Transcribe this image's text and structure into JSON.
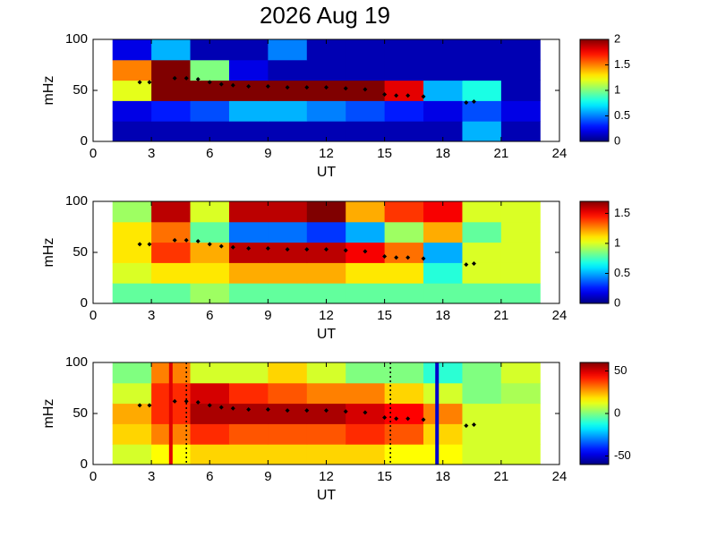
{
  "chart_data": [
    {
      "type": "heatmap",
      "title": "2026 Aug 19",
      "xlabel": "UT",
      "ylabel": "mHz",
      "xlim": [
        0,
        24
      ],
      "xticks": [
        0,
        3,
        6,
        9,
        12,
        15,
        18,
        21,
        24
      ],
      "ylim": [
        0,
        100
      ],
      "yticks": [
        0,
        50,
        100
      ],
      "xbins": [
        1,
        3,
        5,
        7,
        9,
        11,
        13,
        15,
        17,
        19,
        21,
        23
      ],
      "ybins": [
        0,
        20,
        40,
        60,
        80,
        100
      ],
      "clim": [
        0,
        2
      ],
      "cticks": [
        0,
        0.5,
        1,
        1.5,
        2
      ],
      "values": [
        [
          0.1,
          0.1,
          0.1,
          0.1,
          0.1,
          0.1,
          0.1,
          0.1,
          0.1,
          0.6,
          0.1
        ],
        [
          0.2,
          0.3,
          0.4,
          0.6,
          0.6,
          0.5,
          0.4,
          0.3,
          0.2,
          0.4,
          0.2
        ],
        [
          1.2,
          2,
          2,
          2,
          2,
          2,
          2,
          1.8,
          0.6,
          0.8,
          0.1
        ],
        [
          1.5,
          2,
          1,
          0.2,
          0.1,
          0.1,
          0.1,
          0.1,
          0.1,
          0.1,
          0.1
        ],
        [
          0.2,
          0.6,
          0.1,
          0.1,
          0.5,
          0.1,
          0.1,
          0.1,
          0.1,
          0.1,
          0.1
        ]
      ],
      "points": {
        "x": [
          2.4,
          2.9,
          4.2,
          4.8,
          5.4,
          6,
          6.6,
          7.2,
          8,
          9,
          10,
          11,
          12,
          13,
          14,
          15,
          15.6,
          16.2,
          17,
          19.2,
          19.6
        ],
        "y": [
          58,
          58,
          62,
          62,
          61,
          58,
          56,
          55,
          54,
          54,
          53,
          53,
          53,
          52,
          51,
          46,
          45,
          45,
          44,
          38,
          39
        ],
        "color": "#000000"
      }
    },
    {
      "type": "heatmap",
      "xlabel": "UT",
      "ylabel": "mHz",
      "xlim": [
        0,
        24
      ],
      "xticks": [
        0,
        3,
        6,
        9,
        12,
        15,
        18,
        21,
        24
      ],
      "ylim": [
        0,
        100
      ],
      "yticks": [
        0,
        50,
        100
      ],
      "xbins": [
        1,
        3,
        5,
        7,
        9,
        11,
        13,
        15,
        17,
        19,
        21,
        23
      ],
      "ybins": [
        0,
        20,
        40,
        60,
        80,
        100
      ],
      "clim": [
        0,
        1.7
      ],
      "cticks": [
        0,
        0.5,
        1,
        1.5
      ],
      "values": [
        [
          0.8,
          0.8,
          0.9,
          0.8,
          0.8,
          0.8,
          0.8,
          0.8,
          0.8,
          0.8,
          0.8
        ],
        [
          1.0,
          1.1,
          1.1,
          1.2,
          1.2,
          1.2,
          1.1,
          1.1,
          0.7,
          1.0,
          1.0
        ],
        [
          1.1,
          1.4,
          1.2,
          1.6,
          1.6,
          1.6,
          1.5,
          1.3,
          0.5,
          1.0,
          1.0
        ],
        [
          1.1,
          1.3,
          0.8,
          0.4,
          0.4,
          0.3,
          0.5,
          0.9,
          1.2,
          0.8,
          1.0
        ],
        [
          0.9,
          1.6,
          1.0,
          1.6,
          1.6,
          1.7,
          1.2,
          1.4,
          1.5,
          1.0,
          1.0
        ]
      ],
      "points": {
        "x": [
          2.4,
          2.9,
          4.2,
          4.8,
          5.4,
          6,
          6.6,
          7.2,
          8,
          9,
          10,
          11,
          12,
          13,
          14,
          15,
          15.6,
          16.2,
          17,
          19.2,
          19.6
        ],
        "y": [
          58,
          58,
          62,
          62,
          61,
          58,
          56,
          55,
          54,
          54,
          53,
          53,
          53,
          52,
          51,
          46,
          45,
          45,
          44,
          38,
          39
        ],
        "color": "#000000"
      }
    },
    {
      "type": "heatmap",
      "xlabel": "UT",
      "ylabel": "mHz",
      "xlim": [
        0,
        24
      ],
      "xticks": [
        0,
        3,
        6,
        9,
        12,
        15,
        18,
        21,
        24
      ],
      "ylim": [
        0,
        100
      ],
      "yticks": [
        0,
        50,
        100
      ],
      "xbins": [
        1,
        3,
        5,
        7,
        9,
        11,
        13,
        15,
        17,
        19,
        21,
        23
      ],
      "ybins": [
        0,
        20,
        40,
        60,
        80,
        100
      ],
      "clim": [
        -60,
        60
      ],
      "cticks": [
        -50,
        0,
        50
      ],
      "values": [
        [
          10,
          15,
          20,
          20,
          20,
          20,
          20,
          15,
          15,
          10,
          10
        ],
        [
          20,
          30,
          40,
          35,
          35,
          35,
          40,
          35,
          20,
          10,
          10
        ],
        [
          25,
          40,
          55,
          55,
          55,
          55,
          50,
          45,
          30,
          10,
          10
        ],
        [
          10,
          40,
          50,
          40,
          35,
          30,
          30,
          20,
          10,
          0,
          5
        ],
        [
          0,
          30,
          10,
          10,
          20,
          10,
          0,
          0,
          -10,
          0,
          10
        ]
      ],
      "points": {
        "x": [
          2.4,
          2.9,
          4.2,
          4.8,
          5.4,
          6,
          6.6,
          7.2,
          8,
          9,
          10,
          11,
          12,
          13,
          14,
          15,
          15.6,
          16.2,
          17,
          19.2,
          19.6
        ],
        "y": [
          58,
          58,
          62,
          62,
          61,
          58,
          56,
          55,
          54,
          54,
          53,
          53,
          53,
          52,
          51,
          46,
          45,
          45,
          44,
          38,
          39
        ],
        "color": "#000000"
      },
      "vlines": [
        {
          "x": 4,
          "color": "#e00000",
          "style": "solid"
        },
        {
          "x": 4.8,
          "color": "#000000",
          "style": "dotted"
        },
        {
          "x": 15.3,
          "color": "#000000",
          "style": "dotted"
        },
        {
          "x": 17.7,
          "color": "#0000cc",
          "style": "solid"
        }
      ]
    }
  ]
}
